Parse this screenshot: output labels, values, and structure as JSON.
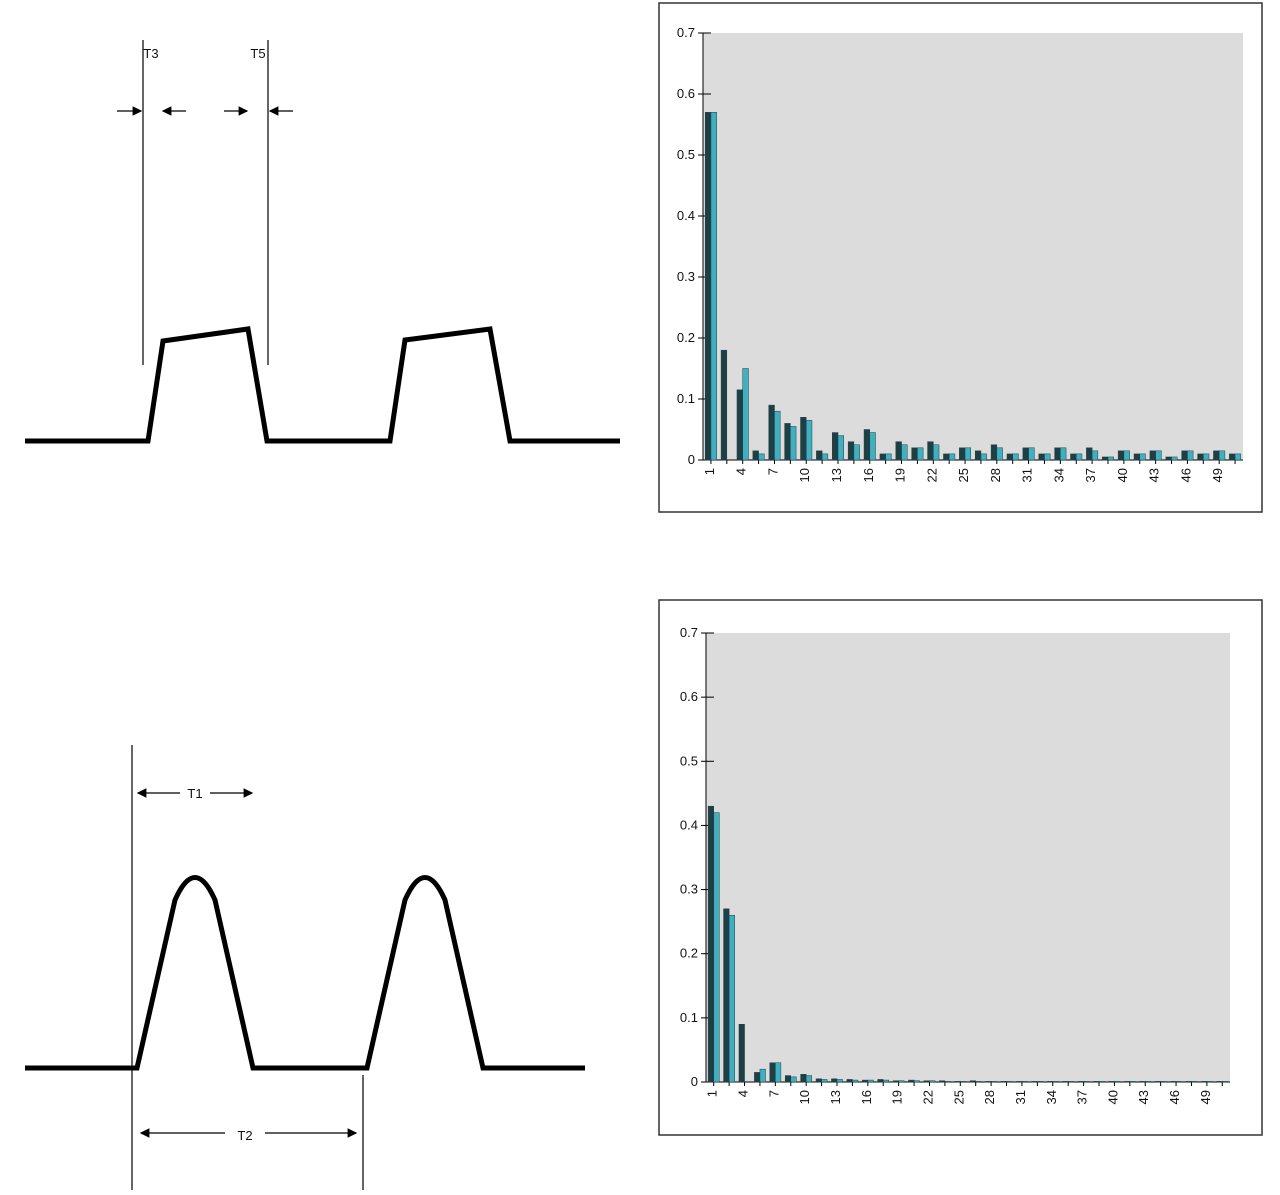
{
  "diagram_labels": {
    "top": [
      "T3",
      "T5"
    ],
    "bottom": [
      "T1",
      "T2"
    ]
  },
  "chart_data": [
    {
      "type": "bar",
      "categories": [
        "1",
        null,
        "4",
        null,
        "7",
        null,
        "10",
        null,
        "13",
        null,
        "16",
        null,
        "19",
        null,
        "22",
        null,
        "25",
        null,
        "28",
        null,
        "31",
        null,
        "34",
        null,
        "37",
        null,
        "40",
        null,
        "43",
        null,
        "46",
        null,
        "49",
        null
      ],
      "series": [
        {
          "color": "#1f3f46",
          "values": [
            0.57,
            0.18,
            0.115,
            0.015,
            0.09,
            0.06,
            0.07,
            0.015,
            0.045,
            0.03,
            0.05,
            0.01,
            0.03,
            0.02,
            0.03,
            0.01,
            0.02,
            0.015,
            0.025,
            0.01,
            0.02,
            0.01,
            0.02,
            0.01,
            0.02,
            0.005,
            0.015,
            0.01,
            0.015,
            0.005,
            0.015,
            0.01,
            0.015,
            0.01
          ]
        },
        {
          "color": "#3fb0c0",
          "values": [
            0.57,
            0.0,
            0.15,
            0.01,
            0.08,
            0.055,
            0.065,
            0.01,
            0.04,
            0.025,
            0.045,
            0.01,
            0.025,
            0.02,
            0.025,
            0.01,
            0.02,
            0.01,
            0.02,
            0.01,
            0.02,
            0.01,
            0.02,
            0.01,
            0.015,
            0.005,
            0.015,
            0.01,
            0.015,
            0.005,
            0.015,
            0.01,
            0.015,
            0.01
          ]
        }
      ],
      "ylim": [
        0,
        0.7
      ],
      "yticks": [
        0,
        0.1,
        0.2,
        0.3,
        0.4,
        0.5,
        0.6,
        0.7
      ],
      "background": "#dcdcdc"
    },
    {
      "type": "bar",
      "categories": [
        "1",
        null,
        "4",
        null,
        "7",
        null,
        "10",
        null,
        "13",
        null,
        "16",
        null,
        "19",
        null,
        "22",
        null,
        "25",
        null,
        "28",
        null,
        "31",
        null,
        "34",
        null,
        "37",
        null,
        "40",
        null,
        "43",
        null,
        "46",
        null,
        "49",
        null
      ],
      "series": [
        {
          "color": "#1f3f46",
          "values": [
            0.43,
            0.27,
            0.09,
            0.015,
            0.03,
            0.01,
            0.012,
            0.005,
            0.005,
            0.004,
            0.003,
            0.004,
            0.002,
            0.003,
            0.002,
            0.002,
            0.001,
            0.002,
            0.001,
            0.001,
            0.001,
            0.001,
            0.001,
            0.001,
            0.001,
            0.001,
            0.001,
            0.001,
            0.001,
            0.001,
            0.001,
            0.001,
            0.001,
            0.001
          ]
        },
        {
          "color": "#3fb0c0",
          "values": [
            0.42,
            0.26,
            0.0,
            0.02,
            0.03,
            0.008,
            0.01,
            0.004,
            0.004,
            0.003,
            0.003,
            0.003,
            0.002,
            0.002,
            0.002,
            0.001,
            0.001,
            0.001,
            0.001,
            0.001,
            0.001,
            0.001,
            0.001,
            0.001,
            0.001,
            0.001,
            0.001,
            0.001,
            0.001,
            0.001,
            0.001,
            0.001,
            0.001,
            0.001
          ]
        }
      ],
      "ylim": [
        0,
        0.7
      ],
      "yticks": [
        0,
        0.1,
        0.2,
        0.3,
        0.4,
        0.5,
        0.6,
        0.7
      ],
      "background": "#dcdcdc"
    }
  ]
}
